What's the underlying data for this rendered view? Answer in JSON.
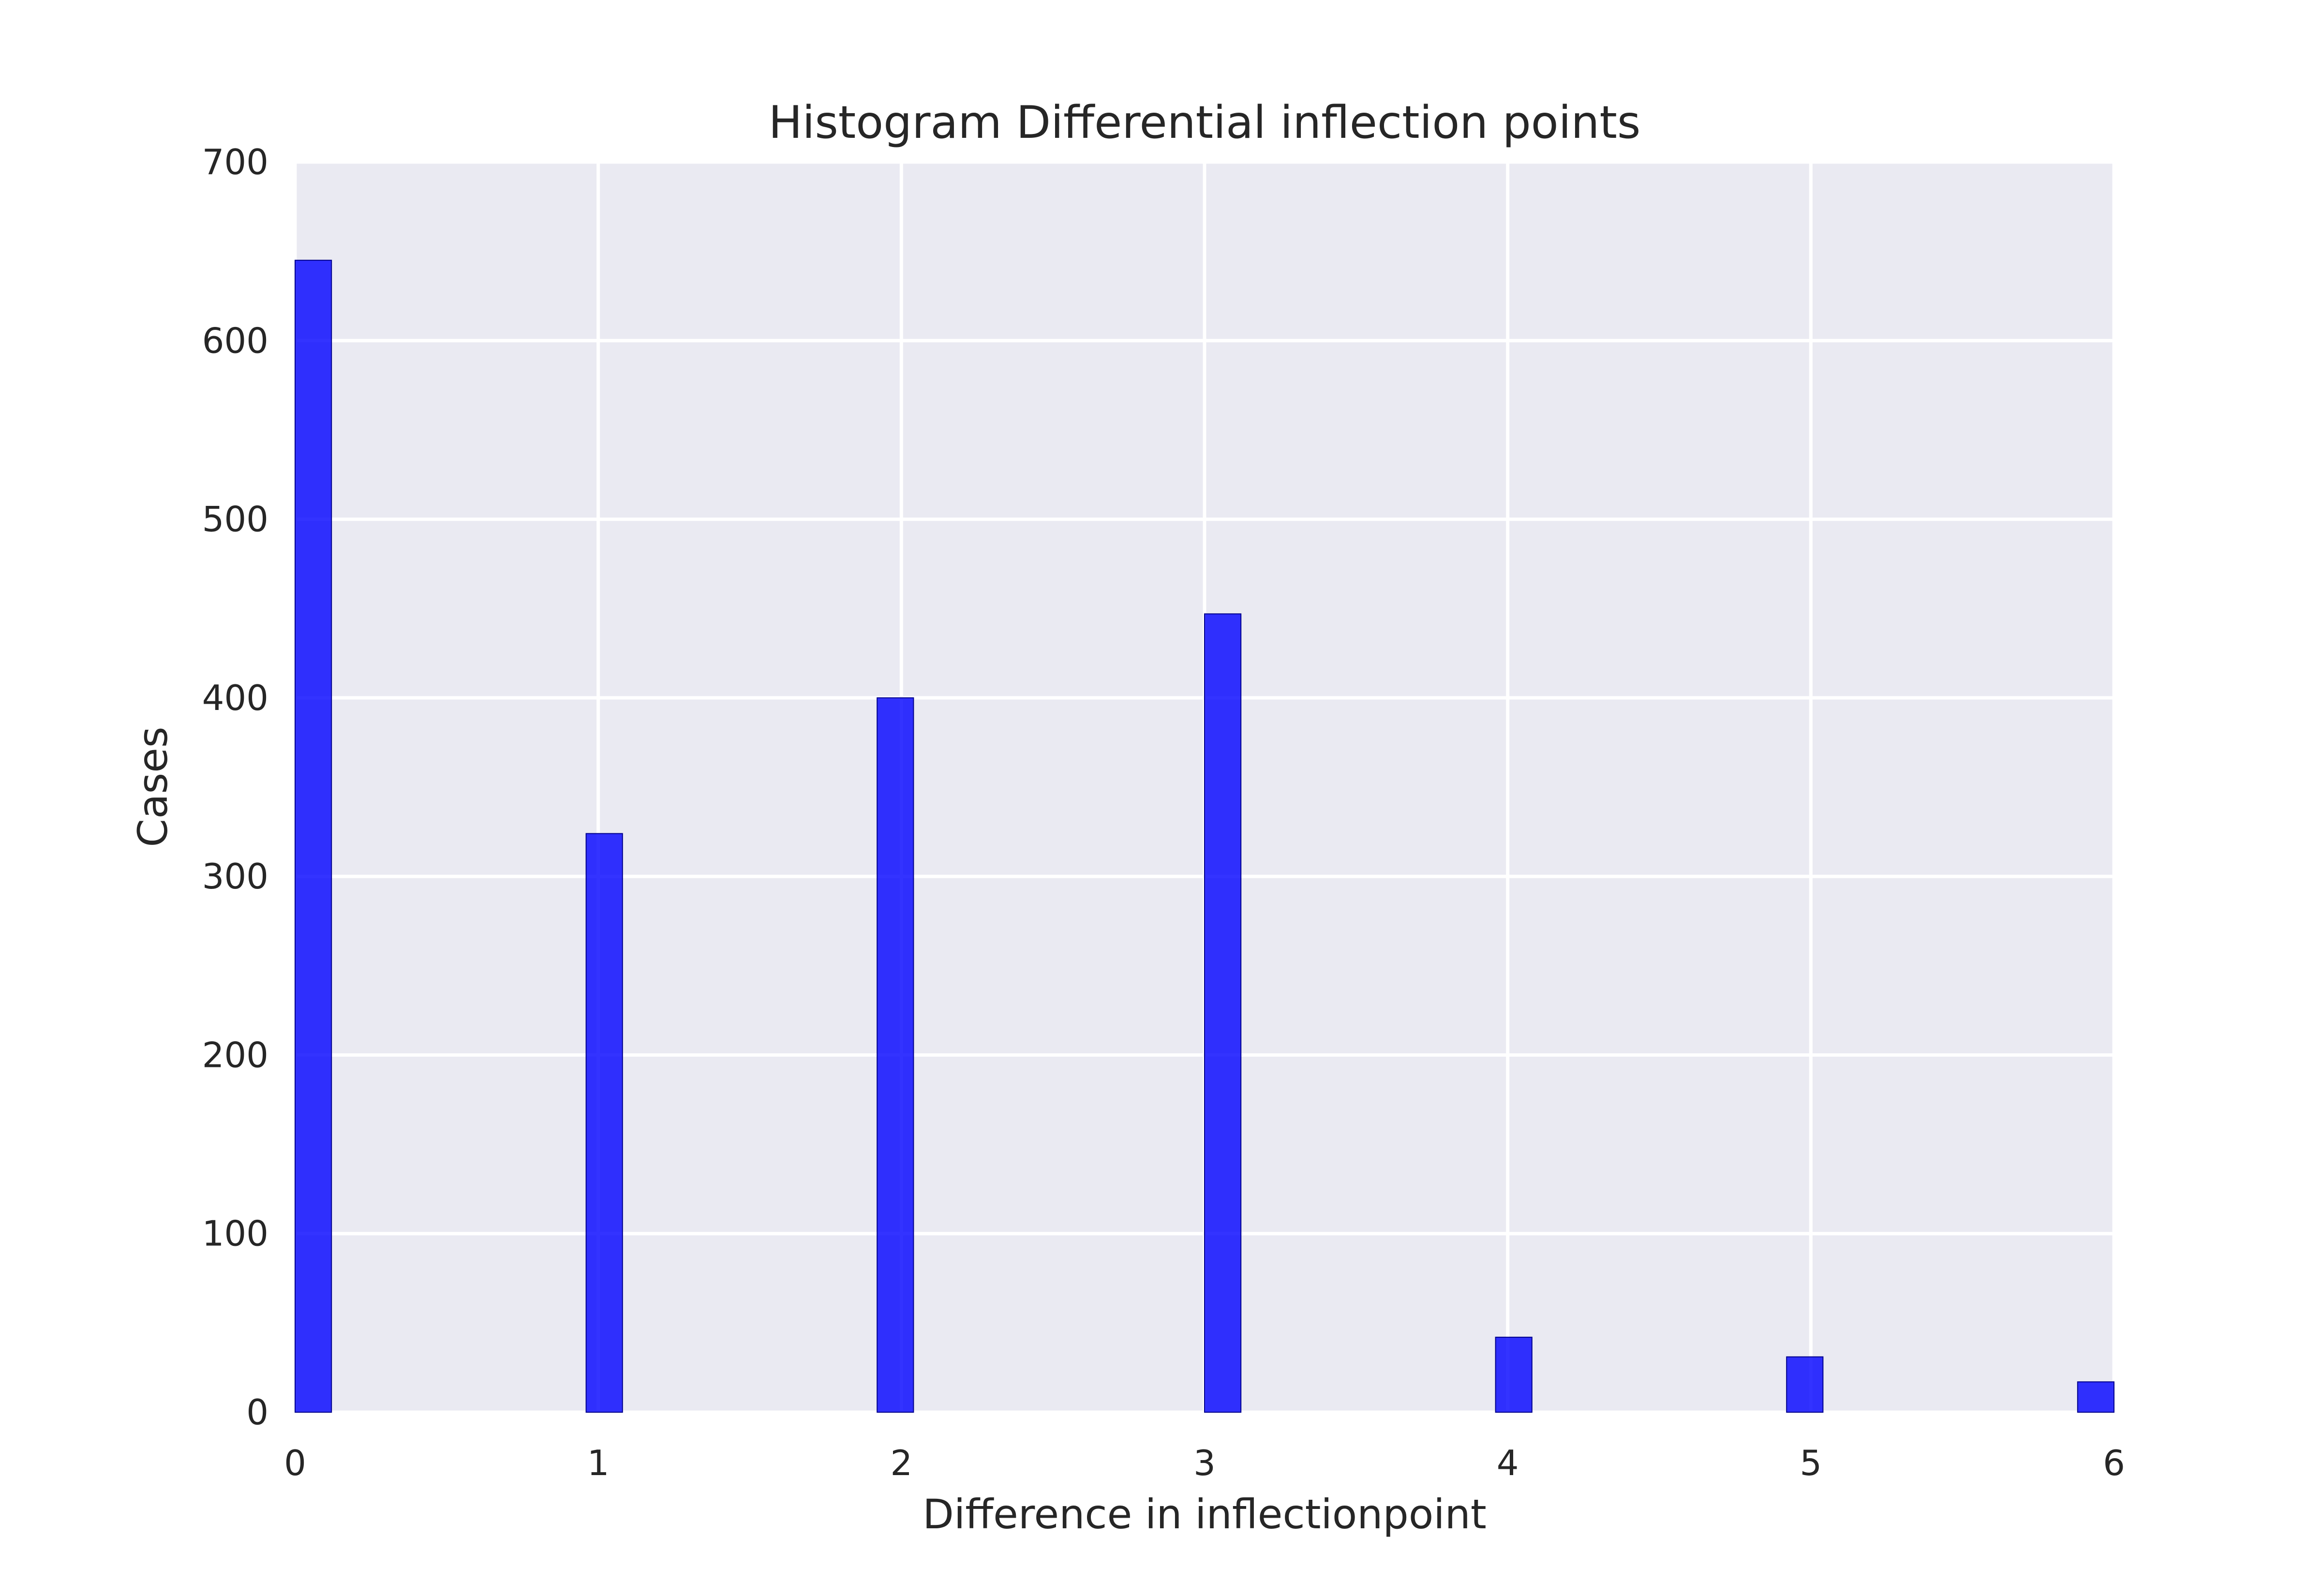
{
  "chart_data": {
    "type": "bar",
    "title": "Histogram Differential inflection points",
    "xlabel": "Difference in inflectionpoint",
    "ylabel": "Cases",
    "xlim": [
      0,
      6
    ],
    "ylim": [
      0,
      700
    ],
    "xticks": [
      0,
      1,
      2,
      3,
      4,
      5,
      6
    ],
    "yticks": [
      0,
      100,
      200,
      300,
      400,
      500,
      600,
      700
    ],
    "grid": true,
    "background_color": "#eaeaf2",
    "bar_color": "#0000ff",
    "bars": [
      {
        "x0": 0.0,
        "x1": 0.12,
        "value": 645
      },
      {
        "x0": 0.96,
        "x1": 1.08,
        "value": 324
      },
      {
        "x0": 1.92,
        "x1": 2.04,
        "value": 400
      },
      {
        "x0": 3.0,
        "x1": 3.12,
        "value": 447
      },
      {
        "x0": 3.96,
        "x1": 4.08,
        "value": 42
      },
      {
        "x0": 4.92,
        "x1": 5.04,
        "value": 31
      },
      {
        "x0": 5.88,
        "x1": 6.0,
        "value": 17
      }
    ]
  }
}
